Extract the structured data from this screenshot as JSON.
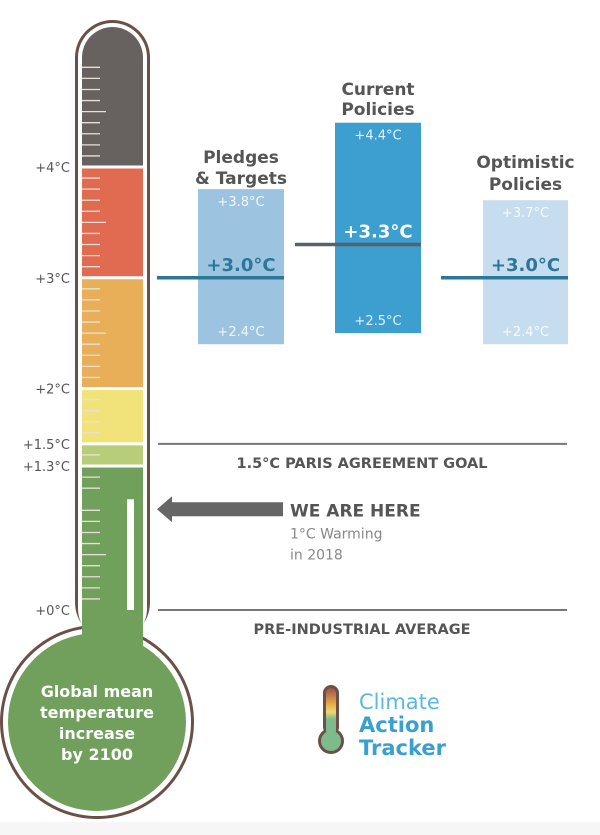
{
  "chart_data": {
    "type": "bar",
    "title": "Global mean temperature increase by 2100",
    "bulb_label": [
      "Global mean",
      "temperature",
      "increase",
      "by 2100"
    ],
    "axis_unit": "°C",
    "ylim": [
      0,
      5.3
    ],
    "tick_labels": [
      {
        "value": 4,
        "label": "+4°C"
      },
      {
        "value": 3,
        "label": "+3°C"
      },
      {
        "value": 2,
        "label": "+2°C"
      },
      {
        "value": 1.5,
        "label": "+1.5°C"
      },
      {
        "value": 1.3,
        "label": "+1.3°C"
      },
      {
        "value": 0,
        "label": "+0°C"
      }
    ],
    "thermometer_bands": [
      {
        "from": 4,
        "to": 5.3,
        "color": "#67625f"
      },
      {
        "from": 3,
        "to": 4,
        "color": "#e06b51"
      },
      {
        "from": 2,
        "to": 3,
        "color": "#e8ae58"
      },
      {
        "from": 1.5,
        "to": 2,
        "color": "#f2e27a"
      },
      {
        "from": 1.3,
        "to": 1.5,
        "color": "#b8cd7a"
      },
      {
        "from": 0,
        "to": 1.3,
        "color": "#70a05b"
      }
    ],
    "current_warming": 1.0,
    "series": [
      {
        "name": "Pledges & Targets",
        "title_lines": [
          "Pledges",
          "& Targets"
        ],
        "low": 2.4,
        "median": 3.0,
        "high": 3.8,
        "low_label": "+2.4°C",
        "median_label": "+3.0°C",
        "high_label": "+3.8°C",
        "color": "#9cc4e0",
        "line_color": "#2c7698",
        "median_text_color": "#2c7698"
      },
      {
        "name": "Current Policies",
        "title_lines": [
          "Current",
          "Policies"
        ],
        "low": 2.5,
        "median": 3.3,
        "high": 4.4,
        "low_label": "+2.5°C",
        "median_label": "+3.3°C",
        "high_label": "+4.4°C",
        "color": "#3d9fd0",
        "line_color": "#56626b",
        "median_text_color": "#ffffff"
      },
      {
        "name": "Optimistic Policies",
        "title_lines": [
          "Optimistic",
          "Policies"
        ],
        "low": 2.4,
        "median": 3.0,
        "high": 3.7,
        "low_label": "+2.4°C",
        "median_label": "+3.0°C",
        "high_label": "+3.7°C",
        "color": "#c6dcef",
        "line_color": "#2c7698",
        "median_text_color": "#2c7698"
      }
    ],
    "reference_lines": [
      {
        "value": 1.5,
        "label": "1.5°C PARIS AGREEMENT GOAL"
      },
      {
        "value": 0,
        "label": "PRE-INDUSTRIAL AVERAGE"
      }
    ],
    "annotation": {
      "title": "WE ARE HERE",
      "lines": [
        "1°C Warming",
        "in 2018"
      ],
      "value": 1.0
    }
  },
  "logo": {
    "lines": [
      "Climate",
      "Action",
      "Tracker"
    ]
  }
}
